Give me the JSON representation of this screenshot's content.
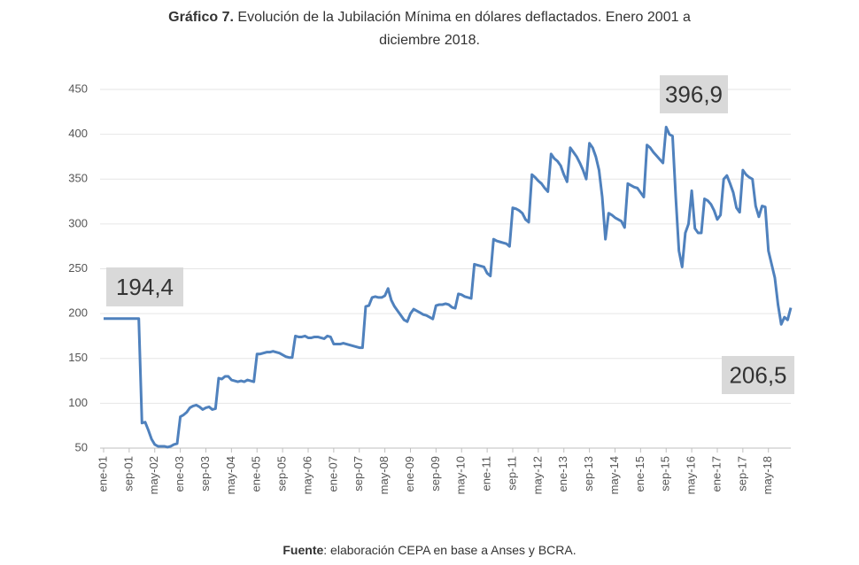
{
  "chart_data": {
    "type": "line",
    "title_bold": "Gráfico 7.",
    "title": "Evolución de la Jubilación Mínima en dólares deflactados. Enero 2001 a",
    "title_line2": "diciembre 2018.",
    "source_bold": "Fuente",
    "source": ": elaboración CEPA en base a Anses y BCRA.",
    "annotations": [
      "194,4",
      "396,9",
      "206,5"
    ],
    "color": "#4f81bd",
    "grid": true,
    "ylim": [
      50,
      450
    ],
    "yticks": [
      50,
      100,
      150,
      200,
      250,
      300,
      350,
      400,
      450
    ],
    "categories": [
      "ene-01",
      null,
      null,
      null,
      null,
      null,
      null,
      null,
      "sep-01",
      null,
      null,
      null,
      null,
      null,
      null,
      null,
      "may-02",
      null,
      null,
      null,
      null,
      null,
      null,
      null,
      "ene-03",
      null,
      null,
      null,
      null,
      null,
      null,
      null,
      "sep-03",
      null,
      null,
      null,
      null,
      null,
      null,
      null,
      "may-04",
      null,
      null,
      null,
      null,
      null,
      null,
      null,
      "ene-05",
      null,
      null,
      null,
      null,
      null,
      null,
      null,
      "sep-05",
      null,
      null,
      null,
      null,
      null,
      null,
      null,
      "may-06",
      null,
      null,
      null,
      null,
      null,
      null,
      null,
      "ene-07",
      null,
      null,
      null,
      null,
      null,
      null,
      null,
      "sep-07",
      null,
      null,
      null,
      null,
      null,
      null,
      null,
      "may-08",
      null,
      null,
      null,
      null,
      null,
      null,
      null,
      "ene-09",
      null,
      null,
      null,
      null,
      null,
      null,
      null,
      "sep-09",
      null,
      null,
      null,
      null,
      null,
      null,
      null,
      "may-10",
      null,
      null,
      null,
      null,
      null,
      null,
      null,
      "ene-11",
      null,
      null,
      null,
      null,
      null,
      null,
      null,
      "sep-11",
      null,
      null,
      null,
      null,
      null,
      null,
      null,
      "may-12",
      null,
      null,
      null,
      null,
      null,
      null,
      null,
      "ene-13",
      null,
      null,
      null,
      null,
      null,
      null,
      null,
      "sep-13",
      null,
      null,
      null,
      null,
      null,
      null,
      null,
      "may-14",
      null,
      null,
      null,
      null,
      null,
      null,
      null,
      "ene-15",
      null,
      null,
      null,
      null,
      null,
      null,
      null,
      "sep-15",
      null,
      null,
      null,
      null,
      null,
      null,
      null,
      "may-16",
      null,
      null,
      null,
      null,
      null,
      null,
      null,
      "ene-17",
      null,
      null,
      null,
      null,
      null,
      null,
      null,
      "sep-17",
      null,
      null,
      null,
      null,
      null,
      null,
      null,
      "may-18",
      null,
      null,
      null,
      null,
      null,
      null,
      null
    ],
    "values": [
      194.4,
      194.4,
      194.4,
      194.4,
      194.4,
      194.4,
      194.4,
      194.4,
      194.4,
      194.4,
      194.4,
      194.4,
      78,
      79,
      70,
      60,
      54,
      52,
      52,
      52,
      51,
      52,
      54,
      55,
      85,
      87,
      90,
      95,
      97,
      98,
      96,
      93,
      95,
      96,
      93,
      94,
      128,
      127,
      130,
      130,
      126,
      125,
      124,
      125,
      124,
      126,
      125,
      124,
      155,
      155,
      156,
      157,
      157,
      158,
      157,
      156,
      154,
      152,
      151,
      151,
      175,
      174,
      174,
      175,
      173,
      173,
      174,
      174,
      173,
      172,
      175,
      174,
      166,
      166,
      166,
      167,
      166,
      165,
      164,
      163,
      162,
      162,
      208,
      209,
      218,
      219,
      218,
      218,
      220,
      228,
      215,
      208,
      203,
      198,
      193,
      191,
      200,
      205,
      203,
      201,
      199,
      198,
      196,
      194,
      209,
      210,
      210,
      211,
      210,
      207,
      206,
      222,
      221,
      219,
      218,
      217,
      255,
      254,
      253,
      252,
      245,
      242,
      283,
      281,
      280,
      279,
      278,
      275,
      318,
      317,
      315,
      312,
      305,
      302,
      355,
      352,
      348,
      345,
      340,
      336,
      378,
      373,
      370,
      365,
      355,
      347,
      385,
      380,
      375,
      368,
      360,
      350,
      390,
      385,
      375,
      360,
      330,
      283,
      312,
      310,
      307,
      305,
      303,
      296,
      345,
      343,
      341,
      340,
      335,
      330,
      388,
      385,
      380,
      376,
      372,
      368,
      408,
      400,
      398,
      330,
      270,
      252,
      290,
      300,
      337,
      295,
      290,
      290,
      328,
      326,
      322,
      315,
      305,
      310,
      350,
      354,
      345,
      335,
      318,
      313,
      360,
      355,
      352,
      350,
      320,
      308,
      320,
      319,
      270,
      255,
      240,
      210,
      188,
      196,
      193,
      206.5
    ]
  }
}
